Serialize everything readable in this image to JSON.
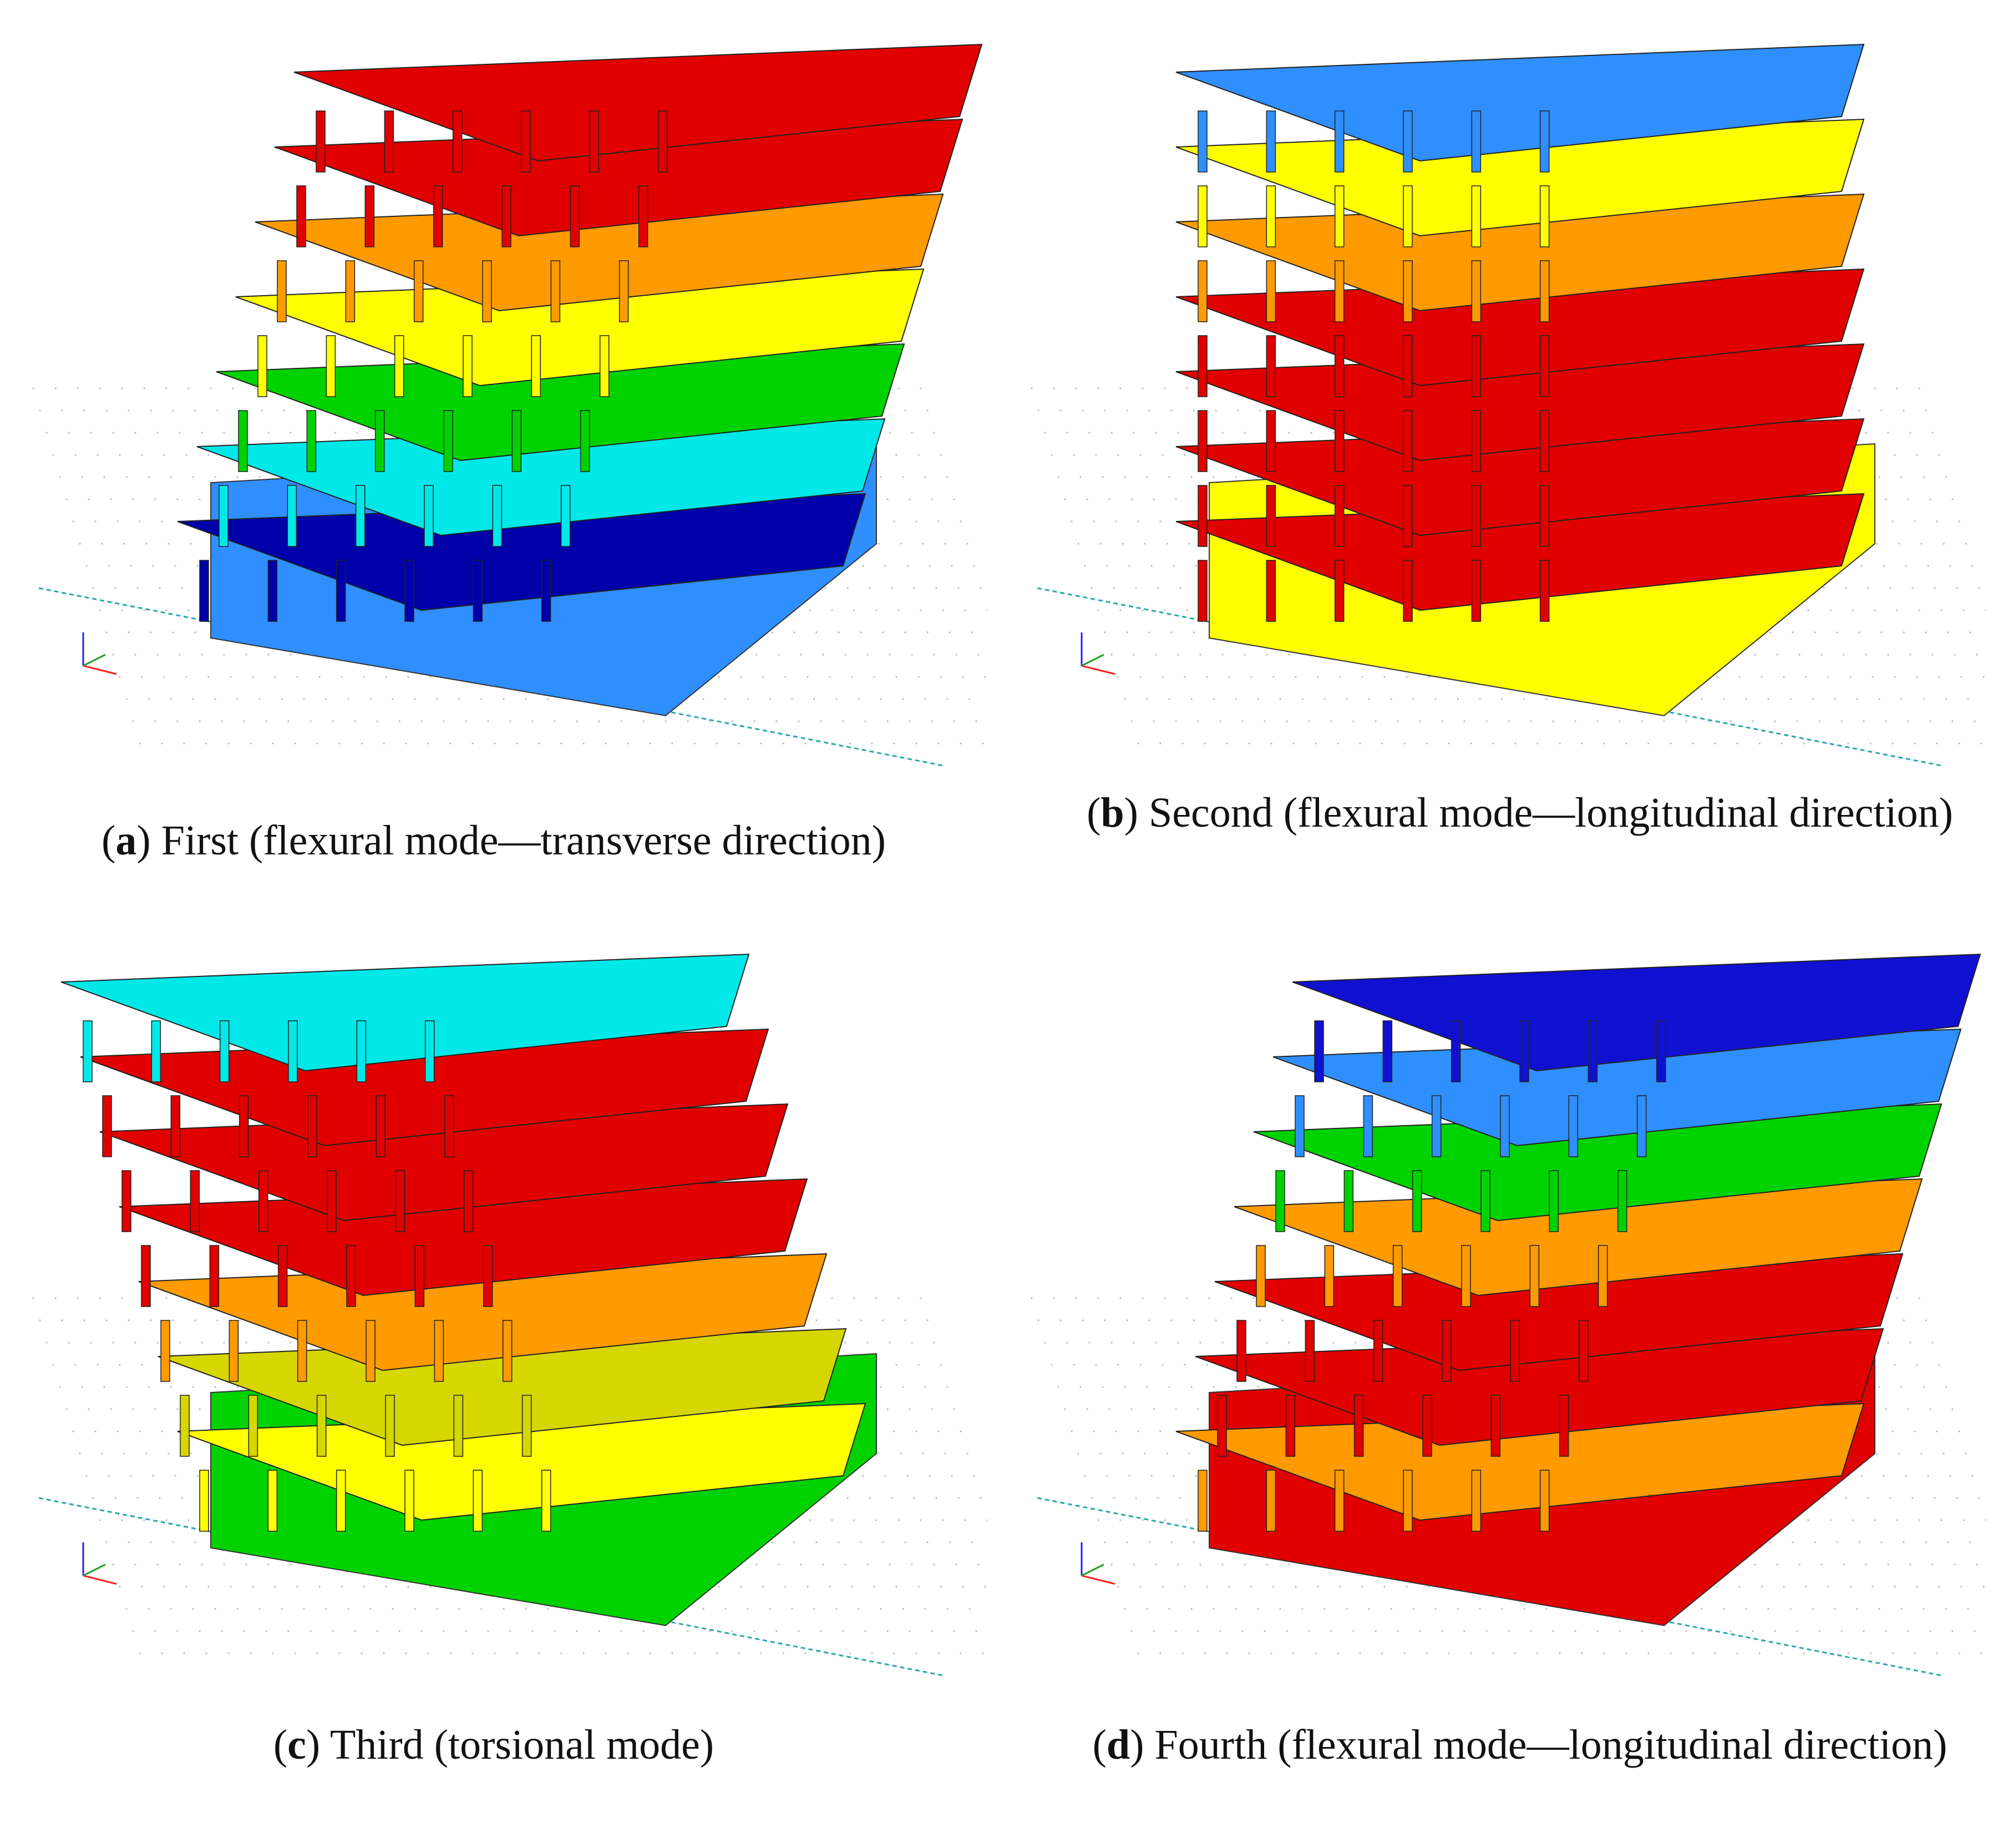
{
  "colors": {
    "red": "#e00000",
    "darkred": "#c80000",
    "orange": "#ff9a00",
    "yellow": "#ffff00",
    "olive": "#d6d600",
    "green": "#00d200",
    "cyan": "#00e8e8",
    "blue": "#2f8fff",
    "darkblue": "#1010d0",
    "navy": "#0000a8"
  },
  "panels": [
    {
      "id": "a",
      "letter": "a",
      "caption_text": ") First (flexural mode—transverse direction)",
      "floor_colors": [
        "navy",
        "cyan",
        "green",
        "yellow",
        "orange",
        "red",
        "red"
      ],
      "podium_color": "blue",
      "drift": 1
    },
    {
      "id": "b",
      "letter": "b",
      "caption_text": ") Second (flexural mode—longitudinal direction)",
      "floor_colors": [
        "red",
        "red",
        "red",
        "red",
        "orange",
        "yellow",
        "blue"
      ],
      "podium_color": "yellow",
      "drift": 0
    },
    {
      "id": "c",
      "letter": "c",
      "caption_text": ") Third (torsional mode)",
      "floor_colors": [
        "yellow",
        "olive",
        "orange",
        "red",
        "red",
        "red",
        "cyan"
      ],
      "podium_color": "green",
      "drift": -1
    },
    {
      "id": "d",
      "letter": "d",
      "caption_text": ") Fourth (flexural mode—longitudinal direction)",
      "floor_colors": [
        "orange",
        "red",
        "red",
        "orange",
        "green",
        "blue",
        "darkblue"
      ],
      "podium_color": "red",
      "drift": 1
    }
  ]
}
